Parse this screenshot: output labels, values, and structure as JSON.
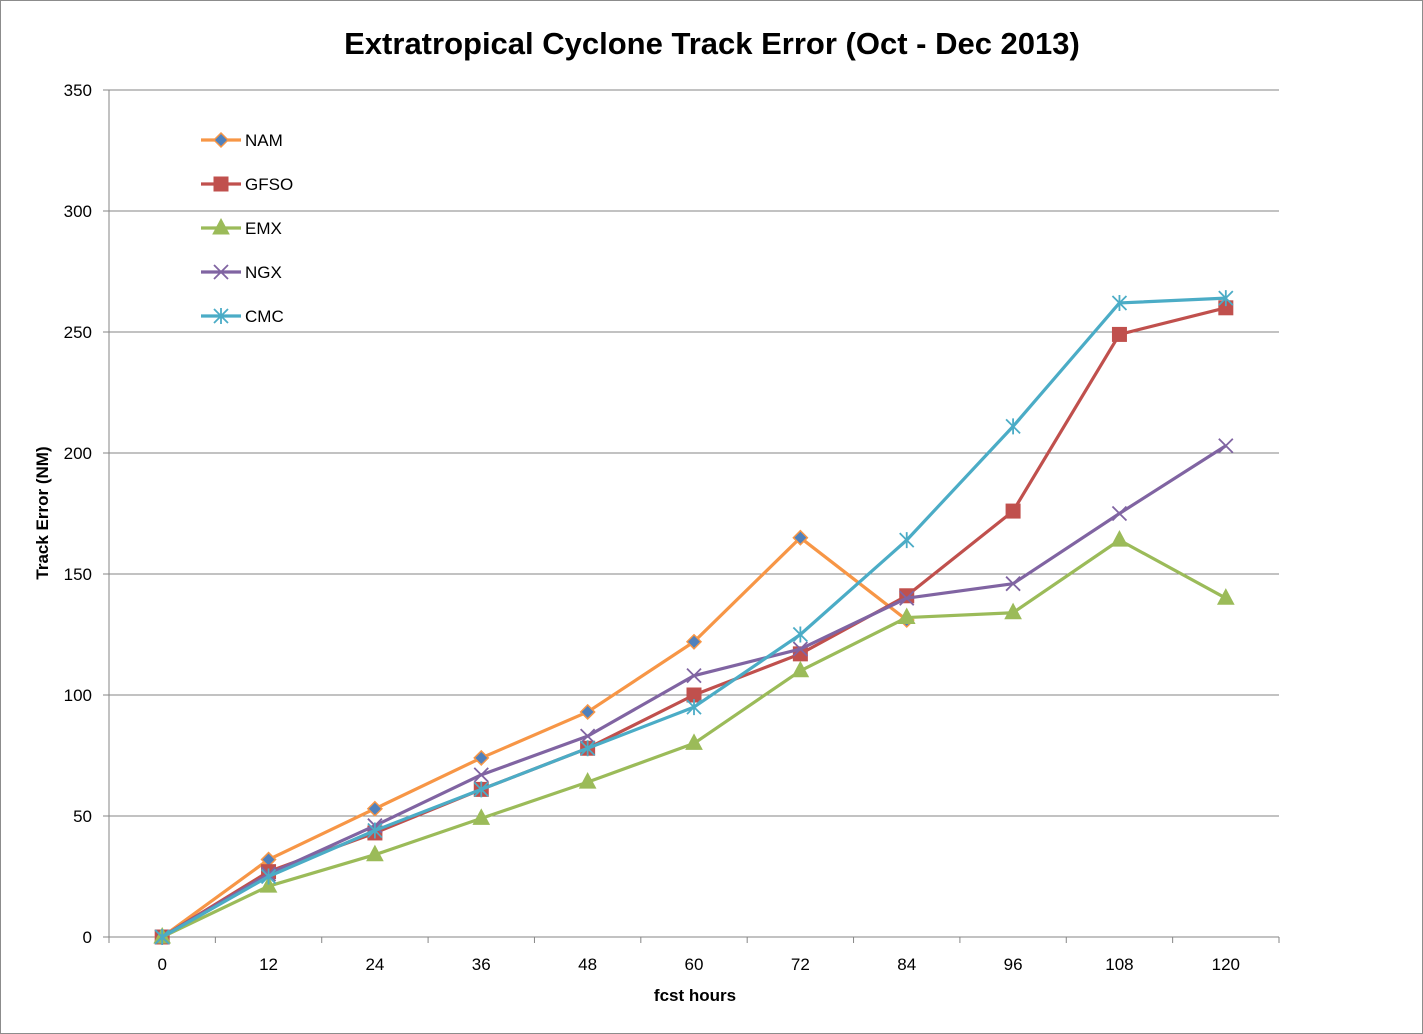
{
  "chart_data": {
    "type": "line",
    "title": "Extratropical Cyclone Track Error (Oct - Dec 2013)",
    "xlabel": "fcst hours",
    "ylabel": "Track Error  (NM)",
    "categories": [
      "0",
      "12",
      "24",
      "36",
      "48",
      "60",
      "72",
      "84",
      "96",
      "108",
      "120"
    ],
    "ylim": [
      0,
      350
    ],
    "yticks": [
      "0",
      "50",
      "100",
      "150",
      "200",
      "250",
      "300",
      "350"
    ],
    "grid": true,
    "legend_position": "top-left",
    "series": [
      {
        "name": "NAM",
        "color": "#F79646",
        "marker": "diamond",
        "marker_color": "#4F81BD",
        "values": [
          0,
          32,
          53,
          74,
          93,
          122,
          165,
          131,
          null,
          null,
          null
        ]
      },
      {
        "name": "GFSO",
        "color": "#C0504D",
        "marker": "square",
        "marker_color": "#C0504D",
        "values": [
          0,
          27,
          43,
          61,
          78,
          100,
          117,
          141,
          176,
          249,
          260
        ]
      },
      {
        "name": "EMX",
        "color": "#9BBB59",
        "marker": "triangle",
        "marker_color": "#9BBB59",
        "values": [
          0,
          21,
          34,
          49,
          64,
          80,
          110,
          132,
          134,
          164,
          140
        ]
      },
      {
        "name": "NGX",
        "color": "#8064A2",
        "marker": "x",
        "marker_color": "#8064A2",
        "values": [
          0,
          26,
          46,
          67,
          83,
          108,
          119,
          140,
          146,
          175,
          203
        ]
      },
      {
        "name": "CMC",
        "color": "#4BACC6",
        "marker": "star",
        "marker_color": "#4BACC6",
        "values": [
          0,
          25,
          44,
          61,
          78,
          95,
          125,
          164,
          211,
          262,
          264
        ]
      }
    ]
  }
}
